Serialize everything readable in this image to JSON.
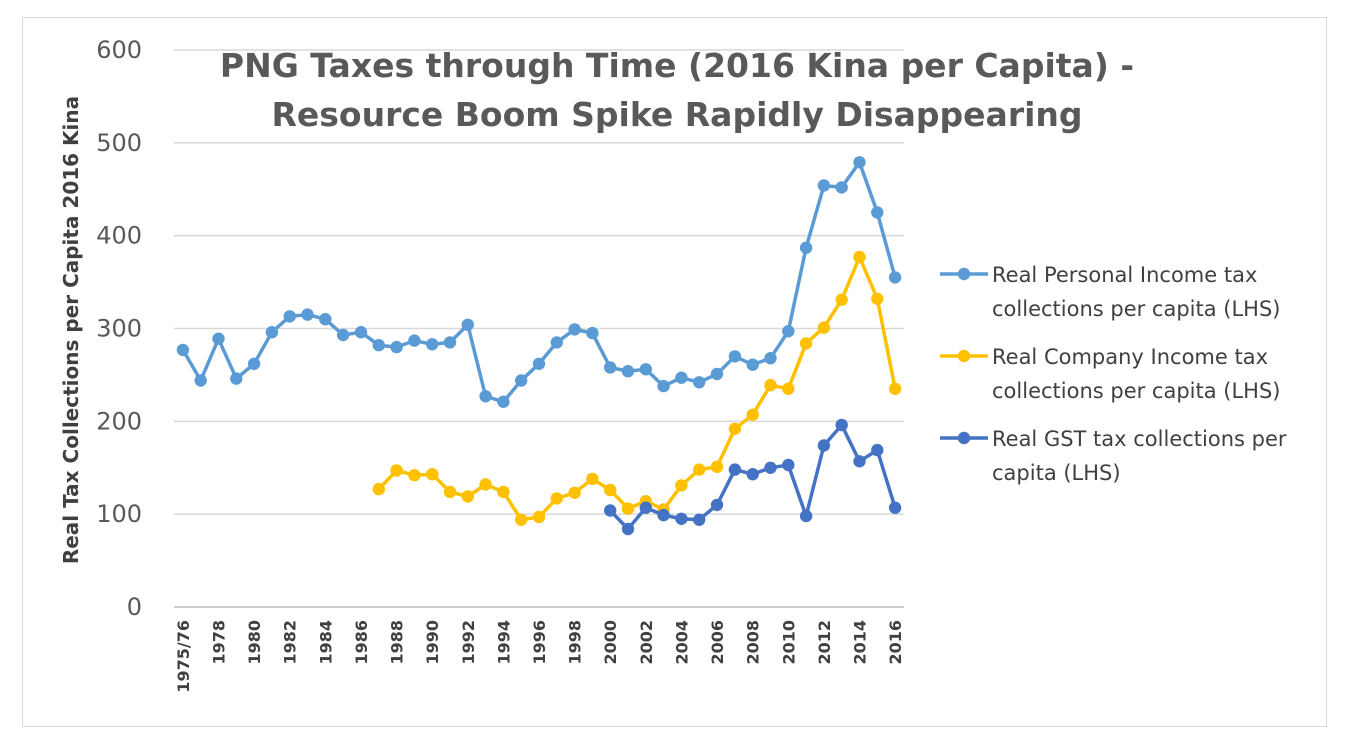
{
  "chart_data": {
    "type": "line",
    "title_lines": [
      "PNG Taxes through Time (2016 Kina per Capita) -",
      "Resource Boom Spike Rapidly Disappearing"
    ],
    "ylabel": "Real Tax Collections per Capita 2016 Kina",
    "xlabel": "",
    "ylim": [
      0,
      600
    ],
    "y_ticks": [
      "0",
      "100",
      "200",
      "300",
      "400",
      "500",
      "600"
    ],
    "grid": "horizontal",
    "legend_position": "right",
    "categories": [
      "1975/76",
      "1977",
      "1978",
      "1979",
      "1980",
      "1981",
      "1982",
      "1983",
      "1984",
      "1985",
      "1986",
      "1987",
      "1988",
      "1989",
      "1990",
      "1991",
      "1992",
      "1993",
      "1994",
      "1995",
      "1996",
      "1997",
      "1998",
      "1999",
      "2000",
      "2001",
      "2002",
      "2003",
      "2004",
      "2005",
      "2006",
      "2007",
      "2008",
      "2009",
      "2010",
      "2011",
      "2012",
      "2013",
      "2014",
      "2015",
      "2016"
    ],
    "x_tick_labels": [
      "1975/76",
      "1978",
      "1980",
      "1982",
      "1984",
      "1986",
      "1988",
      "1990",
      "1992",
      "1994",
      "1996",
      "1998",
      "2000",
      "2002",
      "2004",
      "2006",
      "2008",
      "2010",
      "2012",
      "2014",
      "2016"
    ],
    "series": [
      {
        "name_lines": [
          "Real Personal Income tax",
          "collections per capita (LHS)"
        ],
        "color": "#5b9bd5",
        "values": [
          277,
          244,
          289,
          246,
          262,
          296,
          313,
          315,
          310,
          293,
          296,
          282,
          280,
          287,
          283,
          285,
          304,
          227,
          221,
          244,
          262,
          285,
          299,
          295,
          258,
          254,
          256,
          238,
          247,
          242,
          251,
          270,
          261,
          268,
          297,
          387,
          454,
          452,
          479,
          425,
          355
        ]
      },
      {
        "name_lines": [
          "Real Company Income tax",
          "collections per capita (LHS)"
        ],
        "color": "#ffc000",
        "values": [
          null,
          null,
          null,
          null,
          null,
          null,
          null,
          null,
          null,
          null,
          null,
          127,
          147,
          142,
          143,
          124,
          119,
          132,
          124,
          94,
          97,
          117,
          123,
          138,
          126,
          106,
          114,
          105,
          131,
          148,
          151,
          192,
          207,
          239,
          235,
          284,
          301,
          331,
          377,
          332,
          235
        ]
      },
      {
        "name_lines": [
          "Real GST tax collections per",
          "capita  (LHS)"
        ],
        "color": "#4472c4",
        "values": [
          null,
          null,
          null,
          null,
          null,
          null,
          null,
          null,
          null,
          null,
          null,
          null,
          null,
          null,
          null,
          null,
          null,
          null,
          null,
          null,
          null,
          null,
          null,
          null,
          104,
          84,
          107,
          99,
          95,
          94,
          110,
          148,
          143,
          150,
          153,
          98,
          174,
          196,
          157,
          169,
          107
        ]
      }
    ]
  }
}
